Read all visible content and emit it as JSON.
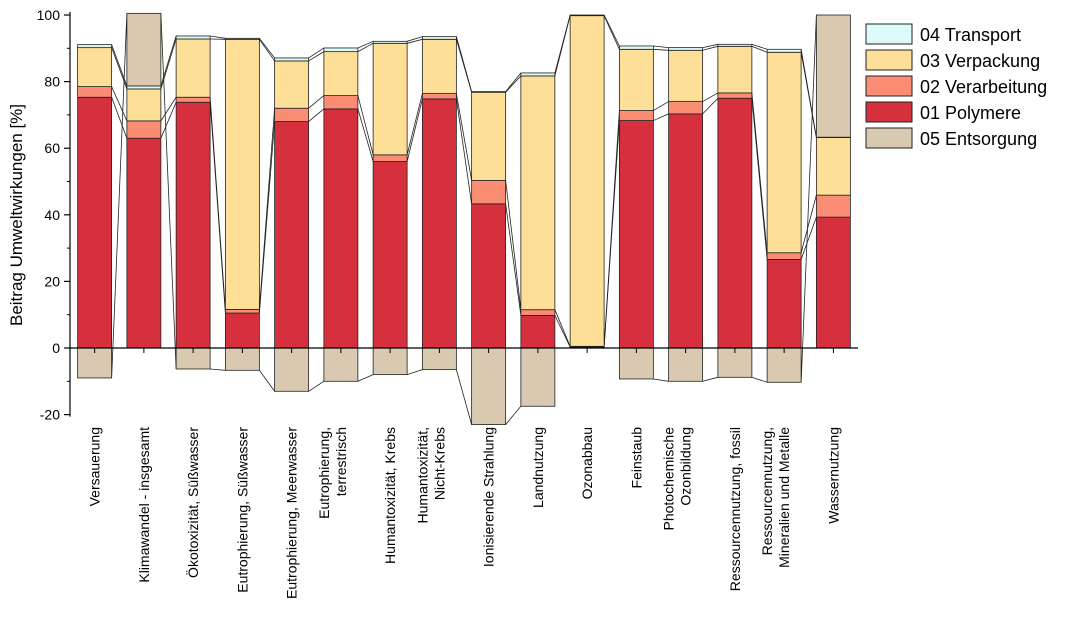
{
  "chart_data": {
    "type": "bar",
    "stacked": true,
    "ylabel": "Beitrag Umweltwirkungen [%]",
    "xlabel": "",
    "ylim": [
      -20,
      100
    ],
    "yticks": [
      -20,
      0,
      20,
      40,
      60,
      80,
      100
    ],
    "categories": [
      [
        "Versauerung"
      ],
      [
        "Klimawandel - insgesamt"
      ],
      [
        "Ökotoxizität, Süßwasser"
      ],
      [
        "Eutrophierung, Süßwasser"
      ],
      [
        "Eutrophierung, Meerwasser"
      ],
      [
        "Eutrophierung,",
        "terrestrisch"
      ],
      [
        "Humantoxizität, Krebs"
      ],
      [
        "Humantoxizität,",
        "Nicht-Krebs"
      ],
      [
        "Ionisierende Strahlung"
      ],
      [
        "Landnutzung"
      ],
      [
        "Ozonabbau"
      ],
      [
        "Feinstaub"
      ],
      [
        "Photochemische",
        "Ozonbildung"
      ],
      [
        "Ressourcennutzung, fossil"
      ],
      [
        "Ressourcennutzung,",
        "Mineralien und Metalle"
      ],
      [
        "Wassernutzung"
      ]
    ],
    "series": [
      {
        "name": "01 Polymere",
        "color": "#d6303f",
        "values": [
          75.3,
          63.0,
          73.8,
          10.5,
          68.0,
          71.8,
          56.0,
          74.8,
          43.3,
          9.8,
          0.3,
          68.3,
          70.3,
          75.0,
          26.6,
          39.3
        ]
      },
      {
        "name": "02 Verarbeitung",
        "color": "#fa8d74",
        "values": [
          3.2,
          5.2,
          1.5,
          1.1,
          4.0,
          4.0,
          2.0,
          1.6,
          7.0,
          1.7,
          0.2,
          3.0,
          3.7,
          1.6,
          2.0,
          6.6
        ]
      },
      {
        "name": "03 Verpackung",
        "color": "#fddf98",
        "values": [
          11.7,
          9.6,
          17.5,
          81.1,
          14.2,
          13.2,
          33.5,
          16.3,
          26.5,
          70.2,
          99.3,
          18.4,
          15.4,
          14.0,
          60.2,
          17.3
        ]
      },
      {
        "name": "04 Transport",
        "color": "#dcfafa",
        "values": [
          0.9,
          0.9,
          0.9,
          0.3,
          0.9,
          1.1,
          0.6,
          0.8,
          0.2,
          0.9,
          0.2,
          1.0,
          0.8,
          0.6,
          0.9,
          0.1
        ]
      },
      {
        "name": "05 Entsorgung",
        "color": "#d8c9b0",
        "values": [
          -9.0,
          21.8,
          -6.3,
          -6.7,
          -13.0,
          -10.0,
          -8.0,
          -6.5,
          -23.0,
          -17.5,
          0.0,
          -9.3,
          -10.0,
          -8.8,
          -10.3,
          36.7
        ]
      }
    ],
    "legend": {
      "position": "right",
      "order": [
        "04 Transport",
        "03 Verpackung",
        "02 Verarbeitung",
        "01 Polymere",
        "05 Entsorgung"
      ]
    },
    "grid": false
  }
}
